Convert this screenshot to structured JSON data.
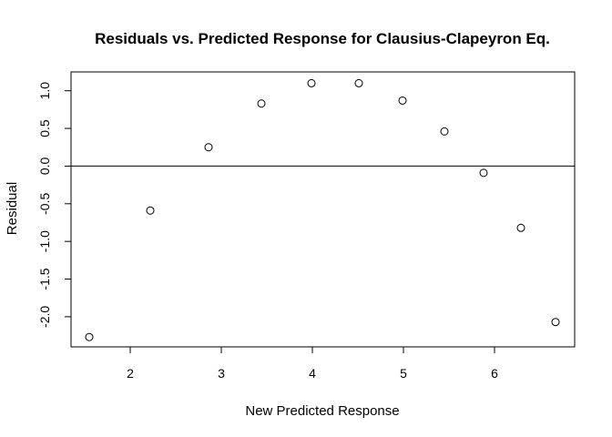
{
  "chart_data": {
    "type": "scatter",
    "title": "Residuals vs. Predicted Response for Clausius-Clapeyron Eq.",
    "xlabel": "New Predicted Response",
    "ylabel": "Residual",
    "xlim": [
      1.35,
      6.88
    ],
    "ylim": [
      -2.4,
      1.25
    ],
    "xticks": [
      2,
      3,
      4,
      5,
      6
    ],
    "xtick_labels": [
      "2",
      "3",
      "4",
      "5",
      "6"
    ],
    "yticks": [
      -2.0,
      -1.5,
      -1.0,
      -0.5,
      0.0,
      0.5,
      1.0
    ],
    "ytick_labels": [
      "-2.0",
      "-1.5",
      "-1.0",
      "-0.5",
      "0.0",
      "0.5",
      "1.0"
    ],
    "reference_line_y": 0,
    "marker": "open-circle",
    "grid": false,
    "series": [
      {
        "points": [
          {
            "x": 1.55,
            "y": -2.27
          },
          {
            "x": 2.22,
            "y": -0.59
          },
          {
            "x": 2.86,
            "y": 0.25
          },
          {
            "x": 3.44,
            "y": 0.83
          },
          {
            "x": 3.99,
            "y": 1.1
          },
          {
            "x": 4.51,
            "y": 1.1
          },
          {
            "x": 4.99,
            "y": 0.87
          },
          {
            "x": 5.45,
            "y": 0.46
          },
          {
            "x": 5.88,
            "y": -0.09
          },
          {
            "x": 6.29,
            "y": -0.82
          },
          {
            "x": 6.67,
            "y": -2.07
          }
        ]
      }
    ]
  }
}
